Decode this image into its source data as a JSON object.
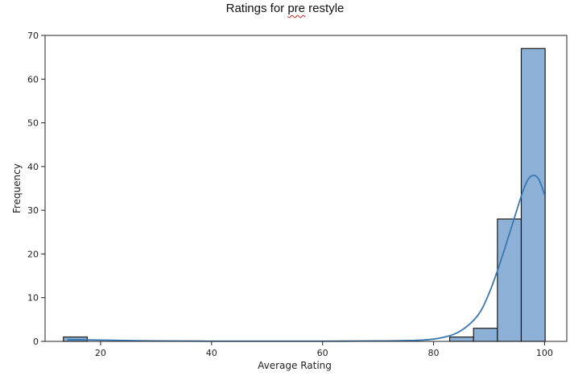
{
  "chart_data": {
    "type": "bar",
    "title_parts": [
      "Ratings for ",
      "pre",
      " restyle"
    ],
    "xlabel": "Average Rating",
    "ylabel": "Frequency",
    "xlim": [
      10,
      104
    ],
    "ylim": [
      0,
      70
    ],
    "xticks": [
      20,
      40,
      60,
      80,
      100
    ],
    "yticks": [
      0,
      10,
      20,
      30,
      40,
      50,
      60,
      70
    ],
    "bar_fill": "#8db1d6",
    "bar_edge": "#1a1a1a",
    "kde_color": "#3a76b0",
    "bins": [
      {
        "x0": 13.3,
        "x1": 17.6,
        "count": 1
      },
      {
        "x0": 82.9,
        "x1": 87.2,
        "count": 1
      },
      {
        "x0": 87.2,
        "x1": 91.5,
        "count": 3
      },
      {
        "x0": 91.5,
        "x1": 95.8,
        "count": 28
      },
      {
        "x0": 95.8,
        "x1": 100.1,
        "count": 67
      }
    ],
    "kde": {
      "x": [
        14,
        20,
        30,
        40,
        50,
        60,
        70,
        78,
        82,
        85,
        88,
        90,
        92,
        94,
        96,
        97,
        98,
        99,
        100
      ],
      "y": [
        0.4,
        0.3,
        0.1,
        0.05,
        0.05,
        0.05,
        0.1,
        0.3,
        1.0,
        2.5,
        6,
        11,
        18,
        26,
        34,
        37,
        38,
        37,
        33.5
      ]
    },
    "grid": false
  }
}
